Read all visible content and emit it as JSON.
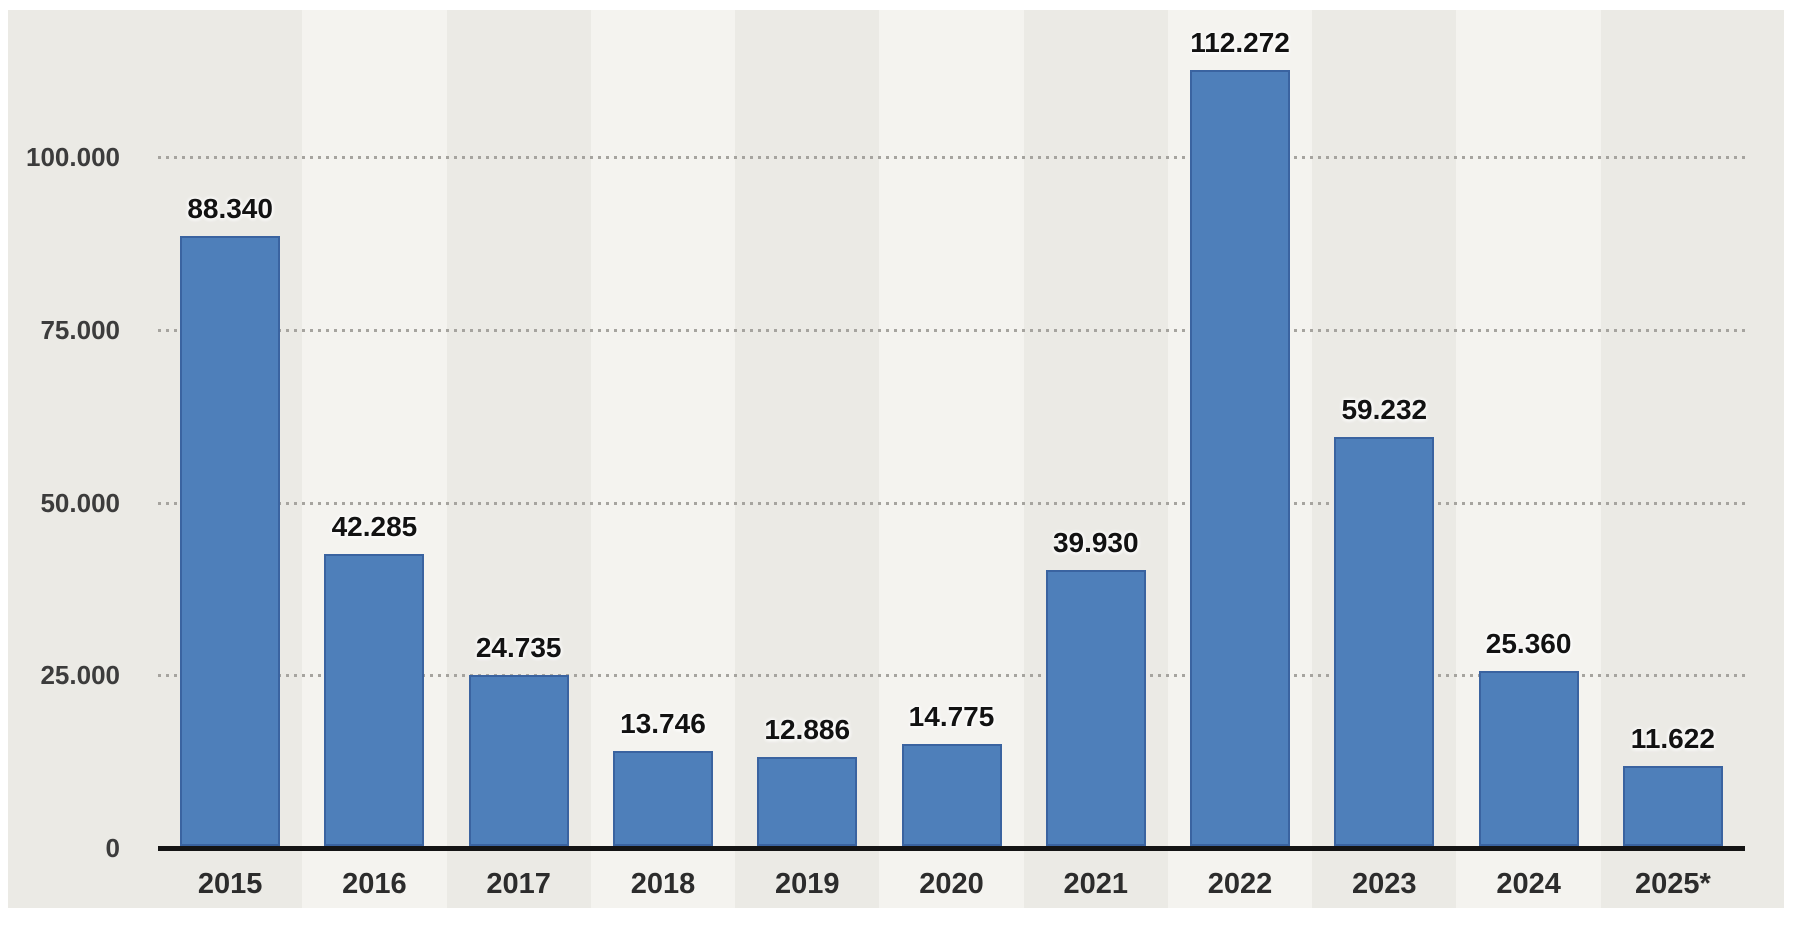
{
  "page": {
    "background": "#ffffff"
  },
  "chart_data": {
    "type": "bar",
    "title": "",
    "xlabel": "",
    "ylabel": "",
    "categories": [
      "2015",
      "2016",
      "2017",
      "2018",
      "2019",
      "2020",
      "2021",
      "2022",
      "2023",
      "2024",
      "2025*"
    ],
    "values": [
      88340,
      42285,
      24735,
      13746,
      12886,
      14775,
      39930,
      112272,
      59232,
      25360,
      11622
    ],
    "value_labels": [
      "88.340",
      "42.285",
      "24.735",
      "13.746",
      "12.886",
      "14.775",
      "39.930",
      "112.272",
      "59.232",
      "25.360",
      "11.622"
    ],
    "y_ticks": [
      {
        "value": 0,
        "label": "0"
      },
      {
        "value": 25000,
        "label": "25.000"
      },
      {
        "value": 50000,
        "label": "50.000"
      },
      {
        "value": 75000,
        "label": "75.000"
      },
      {
        "value": 100000,
        "label": "100.000"
      }
    ],
    "ylim": [
      0,
      121300
    ],
    "grid": {
      "visible": true,
      "style": "dotted",
      "at_values": [
        25000,
        50000,
        75000,
        100000
      ]
    },
    "legend": {
      "visible": false
    },
    "background_stripes": "alternating vertical bands per category, first category dark",
    "colors": {
      "bar_fill": "#4e7fba",
      "bar_border": "#3a63a0",
      "stripe_dark": "#ebeae5",
      "stripe_light": "#f4f3ef",
      "grid_dots": "#a6a49f",
      "axis_line": "#141414",
      "value_label_text": "#121212",
      "tick_label_text": "#3c3c3c"
    }
  }
}
